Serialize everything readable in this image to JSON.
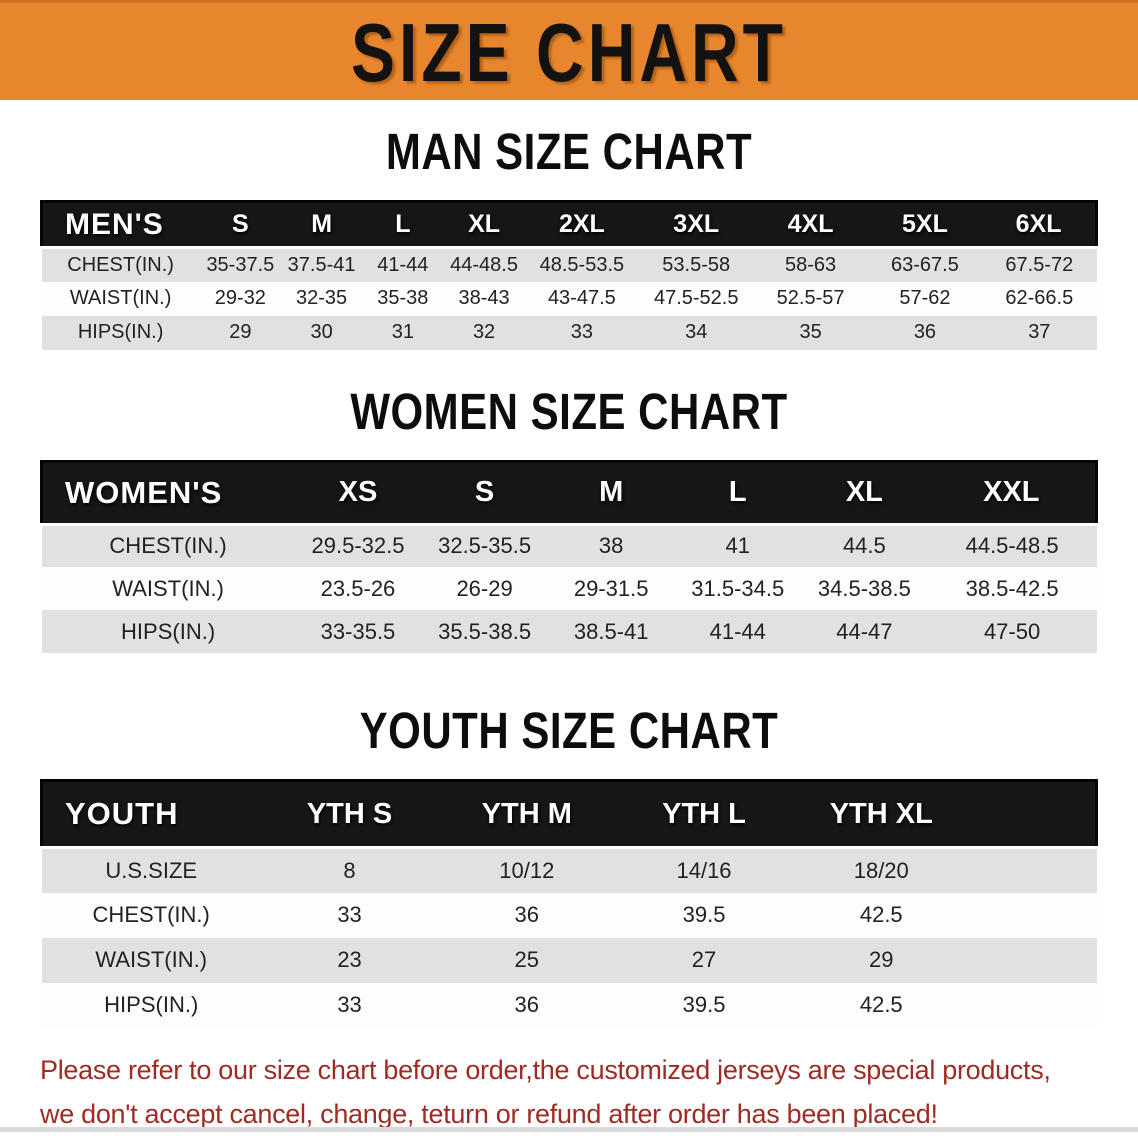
{
  "banner": {
    "title": "SIZE CHART",
    "bg_color": "#E8862D",
    "text_color": "#141210"
  },
  "colors": {
    "header_bar": "#161616",
    "stripe_gray": "#E2E1E0",
    "stripe_white": "#FDFDFD",
    "disclaimer_red": "#9E2B24"
  },
  "sections": [
    {
      "id": "men",
      "title": "MAN SIZE CHART",
      "group_label": "MEN'S",
      "sizes": [
        "S",
        "M",
        "L",
        "XL",
        "2XL",
        "3XL",
        "4XL",
        "5XL",
        "6XL"
      ],
      "rows": [
        {
          "label": "CHEST(IN.)",
          "values": [
            "35-37.5",
            "37.5-41",
            "41-44",
            "44-48.5",
            "48.5-53.5",
            "53.5-58",
            "58-63",
            "63-67.5",
            "67.5-72"
          ]
        },
        {
          "label": "WAIST(IN.)",
          "values": [
            "29-32",
            "32-35",
            "35-38",
            "38-43",
            "43-47.5",
            "47.5-52.5",
            "52.5-57",
            "57-62",
            "62-66.5"
          ]
        },
        {
          "label": "HIPS(IN.)",
          "values": [
            "29",
            "30",
            "31",
            "32",
            "33",
            "34",
            "35",
            "36",
            "37"
          ]
        }
      ]
    },
    {
      "id": "women",
      "title": "WOMEN SIZE CHART",
      "group_label": "WOMEN'S",
      "sizes": [
        "XS",
        "S",
        "M",
        "L",
        "XL",
        "XXL"
      ],
      "rows": [
        {
          "label": "CHEST(IN.)",
          "values": [
            "29.5-32.5",
            "32.5-35.5",
            "38",
            "41",
            "44.5",
            "44.5-48.5"
          ]
        },
        {
          "label": "WAIST(IN.)",
          "values": [
            "23.5-26",
            "26-29",
            "29-31.5",
            "31.5-34.5",
            "34.5-38.5",
            "38.5-42.5"
          ]
        },
        {
          "label": "HIPS(IN.)",
          "values": [
            "33-35.5",
            "35.5-38.5",
            "38.5-41",
            "41-44",
            "44-47",
            "47-50"
          ]
        }
      ]
    },
    {
      "id": "youth",
      "title": "YOUTH SIZE CHART",
      "group_label": "YOUTH",
      "sizes": [
        "YTH S",
        "YTH M",
        "YTH L",
        "YTH XL"
      ],
      "rows": [
        {
          "label": "U.S.SIZE",
          "values": [
            "8",
            "10/12",
            "14/16",
            "18/20"
          ]
        },
        {
          "label": "CHEST(IN.)",
          "values": [
            "33",
            "36",
            "39.5",
            "42.5"
          ]
        },
        {
          "label": "WAIST(IN.)",
          "values": [
            "23",
            "25",
            "27",
            "29"
          ]
        },
        {
          "label": "HIPS(IN.)",
          "values": [
            "33",
            "36",
            "39.5",
            "42.5"
          ]
        }
      ]
    }
  ],
  "disclaimer": {
    "line1": "Please refer to our size chart before order,the customized jerseys are special products,",
    "line2": "we don't accept cancel, change, teturn or refund after order has been placed!"
  }
}
